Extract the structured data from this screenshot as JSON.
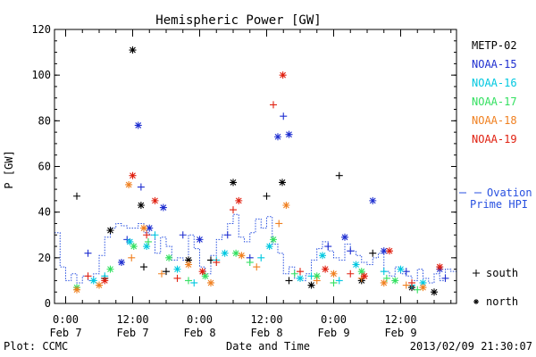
{
  "chart_data": {
    "type": "scatter",
    "title": "Hemispheric Power [GW]",
    "xlabel": "Date and Time",
    "ylabel": "P [GW]",
    "ylim": [
      0,
      120
    ],
    "y_ticks": [
      "0",
      "20",
      "40",
      "60",
      "80",
      "100",
      "120"
    ],
    "x_ticks": [
      {
        "time": "0:00",
        "date": "Feb 7"
      },
      {
        "time": "12:00",
        "date": "Feb 7"
      },
      {
        "time": "0:00",
        "date": "Feb 8"
      },
      {
        "time": "12:00",
        "date": "Feb 8"
      },
      {
        "time": "0:00",
        "date": "Feb 9"
      },
      {
        "time": "12:00",
        "date": "Feb 9"
      }
    ],
    "x_tick_hours": [
      0,
      12,
      24,
      36,
      48,
      60
    ],
    "xlim_hours": [
      -2,
      70
    ],
    "grid": false,
    "legend_placement": "right",
    "series": [
      {
        "name": "METP-02",
        "color": "#000000",
        "north": [
          [
            12,
            111
          ],
          [
            13.5,
            43
          ],
          [
            30,
            53
          ],
          [
            38.8,
            53
          ],
          [
            22,
            19
          ],
          [
            8,
            32
          ],
          [
            44,
            8
          ],
          [
            53,
            10
          ],
          [
            62,
            7
          ],
          [
            66,
            5
          ]
        ],
        "south": [
          [
            2,
            47
          ],
          [
            49,
            56
          ],
          [
            36,
            47
          ],
          [
            14,
            16
          ],
          [
            26,
            19
          ],
          [
            55,
            22
          ],
          [
            7,
            11
          ],
          [
            18,
            14
          ],
          [
            40,
            10
          ]
        ]
      },
      {
        "name": "NOAA-15",
        "color": "#1f2fd0",
        "north": [
          [
            13,
            78
          ],
          [
            17.5,
            42
          ],
          [
            38,
            73
          ],
          [
            40,
            74
          ],
          [
            55,
            45
          ],
          [
            50,
            29
          ],
          [
            15,
            33
          ],
          [
            24,
            28
          ],
          [
            57,
            23
          ],
          [
            10,
            18
          ],
          [
            67,
            15
          ]
        ],
        "south": [
          [
            39,
            82
          ],
          [
            13.5,
            51
          ],
          [
            51,
            23
          ],
          [
            29,
            30
          ],
          [
            47,
            25
          ],
          [
            21,
            30
          ],
          [
            11,
            28
          ],
          [
            4,
            22
          ],
          [
            33,
            20
          ],
          [
            61,
            14
          ],
          [
            68,
            11
          ]
        ]
      },
      {
        "name": "NOAA-16",
        "color": "#00c8e0",
        "north": [
          [
            11.5,
            27
          ],
          [
            14.5,
            25
          ],
          [
            28.5,
            22
          ],
          [
            36.5,
            25
          ],
          [
            46,
            21
          ],
          [
            60,
            15
          ],
          [
            5,
            10
          ],
          [
            20,
            15
          ],
          [
            42,
            11
          ],
          [
            52,
            17
          ],
          [
            64,
            9
          ]
        ],
        "south": [
          [
            16,
            30
          ],
          [
            27,
            19
          ],
          [
            35,
            20
          ],
          [
            44,
            12
          ],
          [
            57,
            14
          ],
          [
            7,
            12
          ],
          [
            23,
            9
          ],
          [
            49,
            10
          ],
          [
            62,
            8
          ]
        ]
      },
      {
        "name": "NOAA-17",
        "color": "#33e060",
        "north": [
          [
            12.2,
            25
          ],
          [
            18.5,
            20
          ],
          [
            30.5,
            22
          ],
          [
            37.2,
            28
          ],
          [
            45,
            12
          ],
          [
            53,
            14
          ],
          [
            8,
            15
          ],
          [
            25,
            12
          ],
          [
            59,
            10
          ],
          [
            2,
            7
          ]
        ],
        "south": [
          [
            14.8,
            27
          ],
          [
            33,
            18
          ],
          [
            41,
            13
          ],
          [
            57.5,
            11
          ],
          [
            22,
            10
          ],
          [
            48,
            9
          ],
          [
            63,
            6
          ]
        ]
      },
      {
        "name": "NOAA-18",
        "color": "#f08020",
        "north": [
          [
            11.3,
            52
          ],
          [
            39.5,
            43
          ],
          [
            14,
            33
          ],
          [
            31.5,
            21
          ],
          [
            22,
            17
          ],
          [
            48,
            13
          ],
          [
            57,
            9
          ],
          [
            2,
            6
          ],
          [
            6,
            8
          ],
          [
            26,
            9
          ],
          [
            64,
            7
          ]
        ],
        "south": [
          [
            11.8,
            20
          ],
          [
            38.2,
            35
          ],
          [
            17.2,
            13
          ],
          [
            34.2,
            16
          ],
          [
            45,
            10
          ],
          [
            53,
            11
          ],
          [
            61,
            8
          ]
        ]
      },
      {
        "name": "NOAA-19",
        "color": "#e02010",
        "north": [
          [
            12,
            56
          ],
          [
            38.9,
            100
          ],
          [
            31,
            45
          ],
          [
            16,
            45
          ],
          [
            24.5,
            14
          ],
          [
            46.5,
            15
          ],
          [
            53.5,
            12
          ],
          [
            58,
            23
          ],
          [
            7,
            10
          ],
          [
            67,
            16
          ]
        ],
        "south": [
          [
            37.2,
            87
          ],
          [
            30,
            41
          ],
          [
            14.5,
            30
          ],
          [
            27,
            18
          ],
          [
            42,
            14
          ],
          [
            51,
            13
          ],
          [
            62,
            9
          ],
          [
            4,
            12
          ],
          [
            20,
            11
          ]
        ]
      },
      {
        "name": "Ovation Prime HPI",
        "color": "#2850e0",
        "x": [
          -2,
          -1,
          0,
          1,
          2,
          3,
          4,
          5,
          6,
          7,
          8,
          9,
          10,
          11,
          12,
          13,
          14,
          15,
          16,
          17,
          18,
          19,
          20,
          21,
          22,
          23,
          24,
          25,
          26,
          27,
          28,
          29,
          30,
          31,
          32,
          33,
          34,
          35,
          36,
          37,
          38,
          39,
          40,
          41,
          42,
          43,
          44,
          45,
          46,
          47,
          48,
          49,
          50,
          51,
          52,
          53,
          54,
          55,
          56,
          57,
          58,
          59,
          60,
          61,
          62,
          63,
          64,
          65,
          66,
          67,
          68,
          69,
          70
        ],
        "values": [
          31,
          16,
          10,
          13,
          9,
          12,
          10,
          13,
          21,
          29,
          33,
          35,
          34,
          33,
          33,
          35,
          31,
          30,
          22,
          29,
          25,
          19,
          20,
          19,
          30,
          24,
          16,
          13,
          21,
          28,
          30,
          35,
          39,
          29,
          27,
          31,
          37,
          33,
          38,
          26,
          22,
          13,
          16,
          11,
          10,
          13,
          19,
          24,
          27,
          23,
          20,
          19,
          26,
          23,
          21,
          18,
          17,
          20,
          22,
          14,
          12,
          16,
          13,
          12,
          10,
          15,
          11,
          9,
          13,
          10,
          15,
          14,
          17
        ]
      }
    ],
    "marker_legend": {
      "south": "south",
      "north": "north"
    },
    "footer_left": "Plot: CCMC",
    "footer_right": "2013/02/09 21:30:07"
  }
}
